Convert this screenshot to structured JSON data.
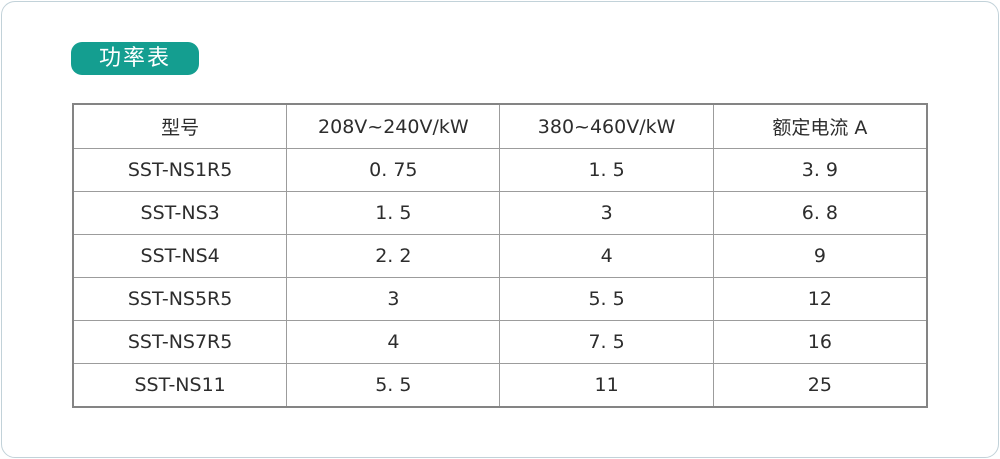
{
  "page": {
    "background_color": "#ffffff",
    "border_color": "#c2d2d9"
  },
  "title_badge": {
    "label": "功率表",
    "bg_color": "#149e90",
    "text_color": "#ffffff"
  },
  "table": {
    "headers": [
      "型号",
      "208V~240V/kW",
      "380~460V/kW",
      "额定电流 A"
    ],
    "rows": [
      [
        "SST-NS1R5",
        "0. 75",
        "1. 5",
        "3. 9"
      ],
      [
        "SST-NS3",
        "1. 5",
        "3",
        "6. 8"
      ],
      [
        "SST-NS4",
        "2. 2",
        "4",
        "9"
      ],
      [
        "SST-NS5R5",
        "3",
        "5. 5",
        "12"
      ],
      [
        "SST-NS7R5",
        "4",
        "7. 5",
        "16"
      ],
      [
        "SST-NS11",
        "5. 5",
        "11",
        "25"
      ]
    ]
  }
}
